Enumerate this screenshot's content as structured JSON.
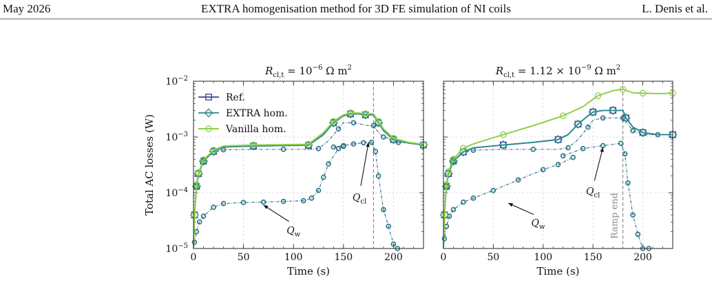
{
  "header": {
    "date": "May 2026",
    "title": "EXTRA homogenisation method for 3D FE simulation of NI coils",
    "authors": "L. Denis et al."
  },
  "colors": {
    "ref": "#3b3f96",
    "extra": "#2a8a8c",
    "vanilla": "#8ed04a",
    "component": "#255e7e",
    "grid": "#d6d6d6",
    "ramp_line": "#777777"
  },
  "legend": {
    "ref": "Ref.",
    "extra": "EXTRA hom.",
    "vanilla": "Vanilla hom."
  },
  "chart_data": [
    {
      "type": "line",
      "title_base": "R",
      "title_sub": "cl,t",
      "title_value": "= 10",
      "title_exp": "−6",
      "title_unit": "Ω m",
      "title_unit_exp": "2",
      "xlabel": "Time (s)",
      "ylabel": "Total AC losses (W)",
      "xlim": [
        0,
        230
      ],
      "ylim": [
        1e-05,
        0.01
      ],
      "yscale": "log",
      "grid": true,
      "legend_position": "top-left",
      "x_ticks": [
        "0",
        "50",
        "100",
        "150",
        "200"
      ],
      "y_tick_base": "10",
      "y_tick_exps": [
        "−5",
        "−4",
        "−3",
        "−2"
      ],
      "vline_x": 180,
      "annotations": [
        {
          "text": "Q",
          "sub": "cl",
          "x": 166,
          "y": 8.5e-05,
          "arrow_to": [
            175,
            0.0008
          ]
        },
        {
          "text": "Q",
          "sub": "w",
          "x": 100,
          "y": 2.2e-05,
          "arrow_to": [
            70,
            6e-05
          ]
        }
      ],
      "series": [
        {
          "name": "Ref.",
          "x": [
            0,
            1,
            3,
            5,
            10,
            20,
            30,
            60,
            90,
            115,
            130,
            140,
            150,
            157,
            165,
            172,
            180,
            185,
            190,
            200,
            215,
            230
          ],
          "y": [
            1e-05,
            4e-05,
            0.00013,
            0.00022,
            0.00037,
            0.00055,
            0.00066,
            0.00069,
            0.0007,
            0.00071,
            0.0011,
            0.0018,
            0.0024,
            0.0026,
            0.0026,
            0.0025,
            0.0025,
            0.0018,
            0.0013,
            0.0009,
            0.00078,
            0.00072
          ]
        },
        {
          "name": "EXTRA hom.",
          "x": [
            0,
            1,
            3,
            5,
            10,
            20,
            30,
            60,
            90,
            115,
            130,
            140,
            150,
            157,
            165,
            172,
            180,
            185,
            190,
            200,
            215,
            230
          ],
          "y": [
            1e-05,
            4e-05,
            0.00013,
            0.00022,
            0.00037,
            0.00055,
            0.00066,
            0.00069,
            0.0007,
            0.00071,
            0.0011,
            0.0018,
            0.0024,
            0.0026,
            0.0026,
            0.0025,
            0.0025,
            0.0018,
            0.0013,
            0.0009,
            0.00078,
            0.00072
          ]
        },
        {
          "name": "Vanilla hom.",
          "x": [
            0,
            1,
            3,
            5,
            10,
            20,
            30,
            60,
            90,
            115,
            130,
            140,
            150,
            157,
            165,
            172,
            180,
            185,
            190,
            200,
            215,
            230
          ],
          "y": [
            1e-05,
            4e-05,
            0.00014,
            0.00023,
            0.00039,
            0.00058,
            0.00069,
            0.00072,
            0.00073,
            0.00074,
            0.0012,
            0.0019,
            0.0025,
            0.0027,
            0.0027,
            0.0026,
            0.0026,
            0.0019,
            0.0014,
            0.00095,
            0.0008,
            0.00074
          ]
        },
        {
          "component": "Q_cl",
          "x": [
            0,
            1,
            3,
            6,
            10,
            20,
            30,
            60,
            90,
            115,
            125,
            135,
            145,
            150,
            160,
            175,
            180,
            185,
            190,
            200,
            205,
            230
          ],
          "y": [
            1e-05,
            4e-05,
            0.00013,
            0.00025,
            0.00037,
            0.00054,
            0.00059,
            0.0006,
            0.0006,
            0.0006,
            0.00062,
            0.00085,
            0.0014,
            0.0018,
            0.0018,
            0.0016,
            0.0016,
            0.0012,
            0.001,
            0.0009,
            0.0008,
            0.00075
          ]
        },
        {
          "component": "Q_cl_ramp",
          "x": [
            140,
            150,
            160,
            170,
            178,
            182,
            185,
            190,
            195,
            200,
            204
          ],
          "y": [
            0.00066,
            0.0007,
            0.00075,
            0.00079,
            0.0008,
            0.00055,
            0.0002,
            5e-05,
            2.5e-05,
            1.2e-05,
            1e-05
          ]
        },
        {
          "component": "Q_w",
          "x": [
            0,
            1,
            3,
            6,
            10,
            20,
            30,
            50,
            70,
            90,
            110,
            118,
            125,
            130,
            135,
            145,
            150
          ],
          "y": [
            1e-05,
            1.3e-05,
            2e-05,
            3e-05,
            3.8e-05,
            5.5e-05,
            6.4e-05,
            6.7e-05,
            6.8e-05,
            7e-05,
            7.2e-05,
            8e-05,
            0.00011,
            0.00019,
            0.00033,
            0.00062,
            0.00068
          ]
        }
      ]
    },
    {
      "type": "line",
      "title_base": "R",
      "title_sub": "cl,t",
      "title_value": "= 1.12 × 10",
      "title_exp": "−9",
      "title_unit": "Ω m",
      "title_unit_exp": "2",
      "xlabel": "Time (s)",
      "ylabel": "",
      "xlim": [
        0,
        230
      ],
      "ylim": [
        1e-05,
        0.01
      ],
      "yscale": "log",
      "grid": true,
      "x_ticks": [
        "0",
        "50",
        "100",
        "150",
        "200"
      ],
      "vline_x": 180,
      "vline_label": "Ramp end",
      "annotations": [
        {
          "text": "Q",
          "sub": "cl",
          "x": 150,
          "y": 0.00011,
          "arrow_to": [
            160,
            0.00065
          ]
        },
        {
          "text": "Q",
          "sub": "w",
          "x": 95,
          "y": 3e-05,
          "arrow_to": [
            65,
            6.5e-05
          ]
        }
      ],
      "series": [
        {
          "name": "Ref.",
          "x": [
            0,
            1,
            3,
            5,
            10,
            20,
            30,
            60,
            90,
            115,
            125,
            135,
            145,
            150,
            160,
            170,
            180,
            183,
            190,
            200,
            215,
            230
          ],
          "y": [
            1e-05,
            4e-05,
            0.00013,
            0.00022,
            0.00037,
            0.00054,
            0.00064,
            0.00072,
            0.0008,
            0.0009,
            0.0011,
            0.0017,
            0.0024,
            0.0028,
            0.003,
            0.003,
            0.003,
            0.0022,
            0.0015,
            0.0012,
            0.0011,
            0.0011
          ]
        },
        {
          "name": "EXTRA hom.",
          "x": [
            0,
            1,
            3,
            5,
            10,
            20,
            30,
            60,
            90,
            115,
            125,
            135,
            145,
            150,
            160,
            170,
            180,
            183,
            190,
            200,
            215,
            230
          ],
          "y": [
            1e-05,
            4e-05,
            0.00013,
            0.00022,
            0.00037,
            0.00054,
            0.00064,
            0.00072,
            0.0008,
            0.0009,
            0.0011,
            0.0017,
            0.0024,
            0.0028,
            0.003,
            0.003,
            0.003,
            0.0022,
            0.0015,
            0.0012,
            0.0011,
            0.0011
          ]
        },
        {
          "name": "Vanilla hom.",
          "x": [
            0,
            1,
            3,
            5,
            10,
            20,
            30,
            60,
            90,
            120,
            140,
            155,
            170,
            180,
            190,
            200,
            215,
            230
          ],
          "y": [
            1e-05,
            4e-05,
            0.00014,
            0.00024,
            0.0004,
            0.00063,
            0.00075,
            0.0011,
            0.0016,
            0.0024,
            0.0035,
            0.0055,
            0.0068,
            0.0072,
            0.0062,
            0.0061,
            0.006,
            0.0061
          ]
        },
        {
          "component": "Q_cl",
          "x": [
            0,
            1,
            3,
            6,
            10,
            20,
            30,
            60,
            90,
            115,
            125,
            135,
            145,
            150,
            160,
            175,
            180,
            185,
            190,
            200,
            215,
            230
          ],
          "y": [
            1e-05,
            4e-05,
            0.00013,
            0.00025,
            0.00037,
            0.00054,
            0.00058,
            0.0006,
            0.0006,
            0.0006,
            0.00064,
            0.0009,
            0.0015,
            0.002,
            0.0022,
            0.0022,
            0.0022,
            0.0017,
            0.0013,
            0.0011,
            0.0011,
            0.0011
          ]
        },
        {
          "component": "Q_cl_ramp",
          "x": [
            120,
            140,
            160,
            178,
            182,
            185,
            190,
            195,
            200,
            206
          ],
          "y": [
            0.00046,
            0.00062,
            0.0007,
            0.00077,
            0.0005,
            0.00015,
            4e-05,
            1.8e-05,
            1e-05,
            1e-05
          ]
        },
        {
          "component": "Q_w",
          "x": [
            0,
            1,
            3,
            6,
            10,
            20,
            30,
            50,
            75,
            100,
            115,
            130
          ],
          "y": [
            1e-05,
            1.5e-05,
            2.5e-05,
            3.8e-05,
            5e-05,
            6.8e-05,
            8e-05,
            0.00011,
            0.00017,
            0.00026,
            0.00032,
            0.00043
          ]
        }
      ]
    }
  ]
}
